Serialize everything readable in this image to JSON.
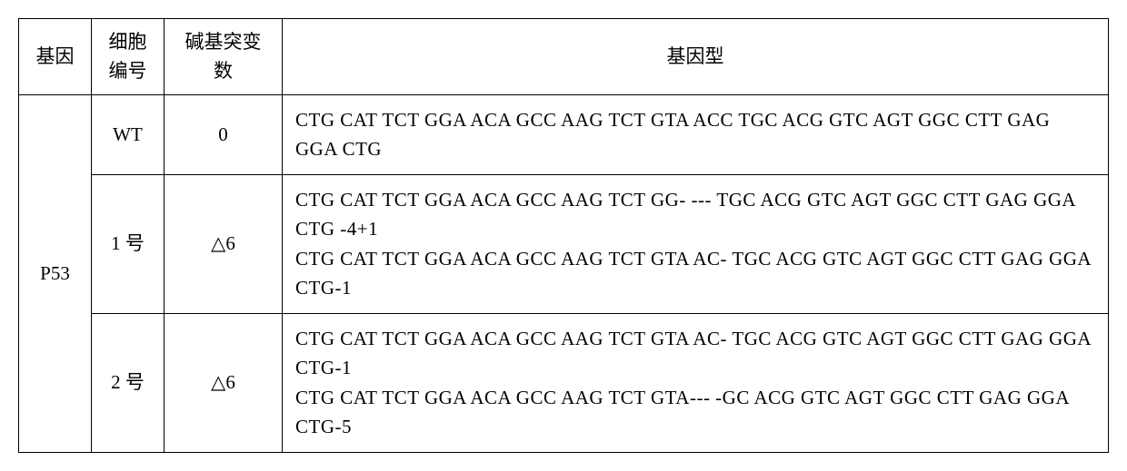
{
  "headers": {
    "gene": "基因",
    "cell_id": "细胞编号",
    "mutation_count": "碱基突变数",
    "genotype": "基因型"
  },
  "gene_label": "P53",
  "rows": [
    {
      "cell_id": "WT",
      "mutation_count": "0",
      "genotype_lines": [
        "CTG CAT TCT GGA ACA GCC AAG TCT GTA ACC TGC ACG GTC AGT GGC CTT GAG GGA CTG"
      ]
    },
    {
      "cell_id": "1 号",
      "mutation_count": "△6",
      "genotype_lines": [
        "CTG CAT TCT GGA ACA GCC AAG TCT GG- --- TGC ACG GTC AGT GGC CTT GAG GGA CTG -4+1",
        "CTG CAT TCT GGA ACA GCC AAG TCT GTA AC- TGC ACG GTC AGT GGC CTT GAG GGA CTG-1"
      ]
    },
    {
      "cell_id": "2 号",
      "mutation_count": "△6",
      "genotype_lines": [
        "CTG CAT TCT GGA ACA GCC AAG TCT GTA AC- TGC ACG GTC AGT GGC CTT GAG GGA CTG-1",
        "CTG CAT TCT GGA ACA GCC AAG TCT GTA--- -GC ACG GTC AGT GGC CTT GAG GGA CTG-5"
      ]
    }
  ]
}
